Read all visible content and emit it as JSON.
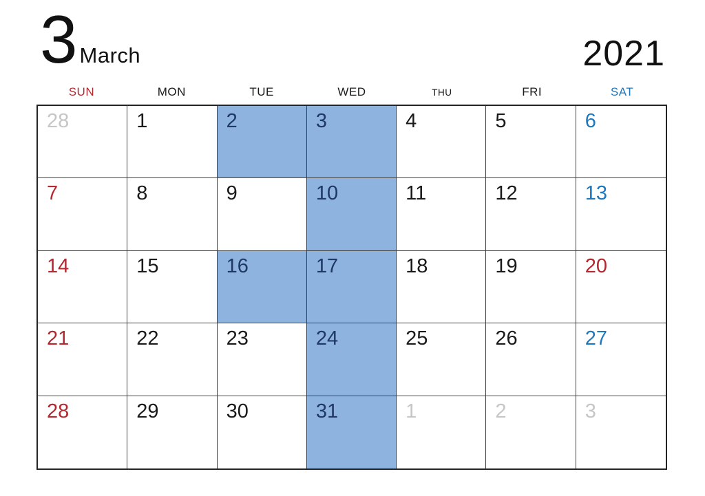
{
  "title": {
    "month_number": "3",
    "month_name": "March",
    "year": "2021"
  },
  "colors": {
    "red": "#b5282f",
    "blue": "#1e78be",
    "navy": "#1f3864",
    "highlight_bg": "#8db3de",
    "muted": "#c6c6c6"
  },
  "weekdays": [
    {
      "label": "SUN",
      "type": "sun"
    },
    {
      "label": "MON",
      "type": "normal"
    },
    {
      "label": "TUE",
      "type": "normal"
    },
    {
      "label": "WED",
      "type": "normal"
    },
    {
      "label": "THU",
      "type": "normal"
    },
    {
      "label": "FRI",
      "type": "normal"
    },
    {
      "label": "SAT",
      "type": "sat"
    }
  ],
  "weeks": [
    [
      {
        "day": "28",
        "type": "prev",
        "highlighted": false
      },
      {
        "day": "1",
        "type": "normal",
        "highlighted": false
      },
      {
        "day": "2",
        "type": "normal",
        "highlighted": true
      },
      {
        "day": "3",
        "type": "normal",
        "highlighted": true
      },
      {
        "day": "4",
        "type": "normal",
        "highlighted": false
      },
      {
        "day": "5",
        "type": "normal",
        "highlighted": false
      },
      {
        "day": "6",
        "type": "sat",
        "highlighted": false
      }
    ],
    [
      {
        "day": "7",
        "type": "sun",
        "highlighted": false
      },
      {
        "day": "8",
        "type": "normal",
        "highlighted": false
      },
      {
        "day": "9",
        "type": "normal",
        "highlighted": false
      },
      {
        "day": "10",
        "type": "normal",
        "highlighted": true
      },
      {
        "day": "11",
        "type": "normal",
        "highlighted": false
      },
      {
        "day": "12",
        "type": "normal",
        "highlighted": false
      },
      {
        "day": "13",
        "type": "sat",
        "highlighted": false
      }
    ],
    [
      {
        "day": "14",
        "type": "sun",
        "highlighted": false
      },
      {
        "day": "15",
        "type": "normal",
        "highlighted": false
      },
      {
        "day": "16",
        "type": "normal",
        "highlighted": true
      },
      {
        "day": "17",
        "type": "normal",
        "highlighted": true
      },
      {
        "day": "18",
        "type": "normal",
        "highlighted": false
      },
      {
        "day": "19",
        "type": "normal",
        "highlighted": false
      },
      {
        "day": "20",
        "type": "holiday",
        "highlighted": false
      }
    ],
    [
      {
        "day": "21",
        "type": "sun",
        "highlighted": false
      },
      {
        "day": "22",
        "type": "normal",
        "highlighted": false
      },
      {
        "day": "23",
        "type": "normal",
        "highlighted": false
      },
      {
        "day": "24",
        "type": "normal",
        "highlighted": true
      },
      {
        "day": "25",
        "type": "normal",
        "highlighted": false
      },
      {
        "day": "26",
        "type": "normal",
        "highlighted": false
      },
      {
        "day": "27",
        "type": "sat",
        "highlighted": false
      }
    ],
    [
      {
        "day": "28",
        "type": "sun",
        "highlighted": false
      },
      {
        "day": "29",
        "type": "normal",
        "highlighted": false
      },
      {
        "day": "30",
        "type": "normal",
        "highlighted": false
      },
      {
        "day": "31",
        "type": "normal",
        "highlighted": true
      },
      {
        "day": "1",
        "type": "next",
        "highlighted": false
      },
      {
        "day": "2",
        "type": "next",
        "highlighted": false
      },
      {
        "day": "3",
        "type": "next",
        "highlighted": false
      }
    ]
  ]
}
